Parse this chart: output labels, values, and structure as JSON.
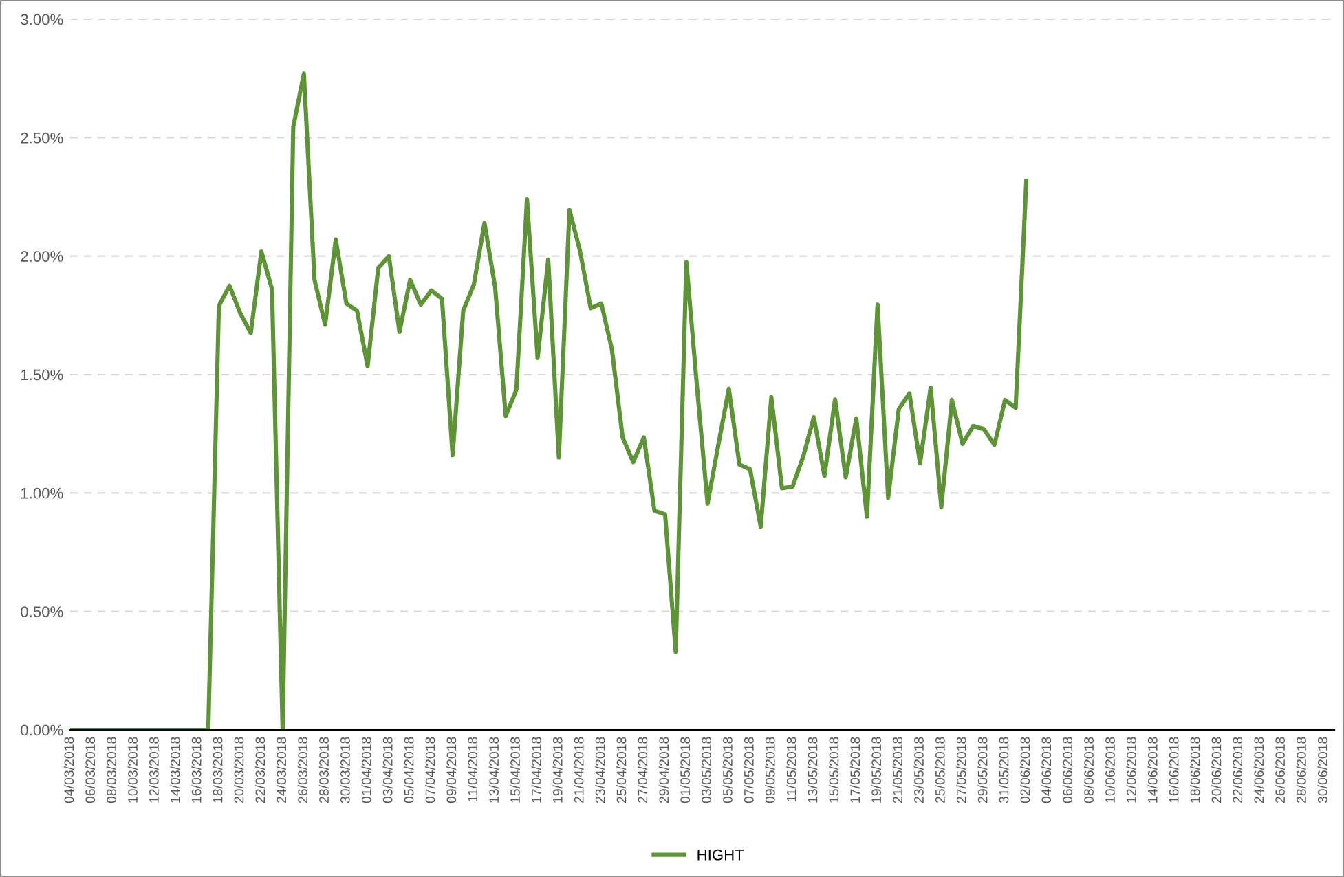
{
  "chart_data": {
    "type": "line",
    "x": [
      "2018-03-04",
      "2018-03-05",
      "2018-03-06",
      "2018-03-07",
      "2018-03-08",
      "2018-03-09",
      "2018-03-10",
      "2018-03-11",
      "2018-03-12",
      "2018-03-13",
      "2018-03-14",
      "2018-03-15",
      "2018-03-16",
      "2018-03-17",
      "2018-03-18",
      "2018-03-19",
      "2018-03-20",
      "2018-03-21",
      "2018-03-22",
      "2018-03-23",
      "2018-03-24",
      "2018-03-25",
      "2018-03-26",
      "2018-03-27",
      "2018-03-28",
      "2018-03-29",
      "2018-03-30",
      "2018-03-31",
      "2018-04-01",
      "2018-04-02",
      "2018-04-03",
      "2018-04-04",
      "2018-04-05",
      "2018-04-06",
      "2018-04-07",
      "2018-04-08",
      "2018-04-09",
      "2018-04-10",
      "2018-04-11",
      "2018-04-12",
      "2018-04-13",
      "2018-04-14",
      "2018-04-15",
      "2018-04-16",
      "2018-04-17",
      "2018-04-18",
      "2018-04-19",
      "2018-04-20",
      "2018-04-21",
      "2018-04-22",
      "2018-04-23",
      "2018-04-24",
      "2018-04-25",
      "2018-04-26",
      "2018-04-27",
      "2018-04-28",
      "2018-04-29",
      "2018-04-30",
      "2018-05-01",
      "2018-05-02",
      "2018-05-03",
      "2018-05-04",
      "2018-05-05",
      "2018-05-06",
      "2018-05-07",
      "2018-05-08",
      "2018-05-09",
      "2018-05-10",
      "2018-05-11",
      "2018-05-12",
      "2018-05-13",
      "2018-05-14",
      "2018-05-15",
      "2018-05-16",
      "2018-05-17",
      "2018-05-18",
      "2018-05-19",
      "2018-05-20",
      "2018-05-21",
      "2018-05-22",
      "2018-05-23",
      "2018-05-24",
      "2018-05-25",
      "2018-05-26",
      "2018-05-27",
      "2018-05-28",
      "2018-05-29",
      "2018-05-30",
      "2018-05-31",
      "2018-06-01",
      "2018-06-02"
    ],
    "series": [
      {
        "name": "HIGHT",
        "color": "#5e9338",
        "values": [
          0,
          0,
          0,
          0,
          0,
          0,
          0,
          0,
          0,
          0,
          0,
          0,
          0,
          0,
          1.79,
          1.875,
          1.76,
          1.675,
          2.02,
          1.86,
          0,
          2.545,
          2.77,
          1.9,
          1.71,
          2.07,
          1.8,
          1.77,
          1.535,
          1.95,
          2.0,
          1.68,
          1.9,
          1.795,
          1.855,
          1.82,
          1.16,
          1.77,
          1.88,
          2.14,
          1.87,
          1.325,
          1.435,
          2.24,
          1.57,
          1.985,
          1.15,
          2.195,
          2.02,
          1.78,
          1.8,
          1.605,
          1.235,
          1.13,
          1.235,
          0.925,
          0.91,
          0.33,
          1.975,
          1.45,
          0.955,
          1.2,
          1.44,
          1.12,
          1.1,
          0.857,
          1.405,
          1.02,
          1.027,
          1.153,
          1.32,
          1.072,
          1.395,
          1.066,
          1.315,
          0.9,
          1.795,
          0.98,
          1.355,
          1.42,
          1.125,
          1.445,
          0.94,
          1.393,
          1.207,
          1.283,
          1.27,
          1.203,
          1.393,
          1.36,
          2.317
        ]
      }
    ],
    "xlim": [
      "2018-03-04",
      "2018-07-01"
    ],
    "xticks": [
      {
        "value": "2018-03-04",
        "label": "04/03/2018"
      },
      {
        "value": "2018-03-06",
        "label": "06/03/2018"
      },
      {
        "value": "2018-03-08",
        "label": "08/03/2018"
      },
      {
        "value": "2018-03-10",
        "label": "10/03/2018"
      },
      {
        "value": "2018-03-12",
        "label": "12/03/2018"
      },
      {
        "value": "2018-03-14",
        "label": "14/03/2018"
      },
      {
        "value": "2018-03-16",
        "label": "16/03/2018"
      },
      {
        "value": "2018-03-18",
        "label": "18/03/2018"
      },
      {
        "value": "2018-03-20",
        "label": "20/03/2018"
      },
      {
        "value": "2018-03-22",
        "label": "22/03/2018"
      },
      {
        "value": "2018-03-24",
        "label": "24/03/2018"
      },
      {
        "value": "2018-03-26",
        "label": "26/03/2018"
      },
      {
        "value": "2018-03-28",
        "label": "28/03/2018"
      },
      {
        "value": "2018-03-30",
        "label": "30/03/2018"
      },
      {
        "value": "2018-04-01",
        "label": "01/04/2018"
      },
      {
        "value": "2018-04-03",
        "label": "03/04/2018"
      },
      {
        "value": "2018-04-05",
        "label": "05/04/2018"
      },
      {
        "value": "2018-04-07",
        "label": "07/04/2018"
      },
      {
        "value": "2018-04-09",
        "label": "09/04/2018"
      },
      {
        "value": "2018-04-11",
        "label": "11/04/2018"
      },
      {
        "value": "2018-04-13",
        "label": "13/04/2018"
      },
      {
        "value": "2018-04-15",
        "label": "15/04/2018"
      },
      {
        "value": "2018-04-17",
        "label": "17/04/2018"
      },
      {
        "value": "2018-04-19",
        "label": "19/04/2018"
      },
      {
        "value": "2018-04-21",
        "label": "21/04/2018"
      },
      {
        "value": "2018-04-23",
        "label": "23/04/2018"
      },
      {
        "value": "2018-04-25",
        "label": "25/04/2018"
      },
      {
        "value": "2018-04-27",
        "label": "27/04/2018"
      },
      {
        "value": "2018-04-29",
        "label": "29/04/2018"
      },
      {
        "value": "2018-05-01",
        "label": "01/05/2018"
      },
      {
        "value": "2018-05-03",
        "label": "03/05/2018"
      },
      {
        "value": "2018-05-05",
        "label": "05/05/2018"
      },
      {
        "value": "2018-05-07",
        "label": "07/05/2018"
      },
      {
        "value": "2018-05-09",
        "label": "09/05/2018"
      },
      {
        "value": "2018-05-11",
        "label": "11/05/2018"
      },
      {
        "value": "2018-05-13",
        "label": "13/05/2018"
      },
      {
        "value": "2018-05-15",
        "label": "15/05/2018"
      },
      {
        "value": "2018-05-17",
        "label": "17/05/2018"
      },
      {
        "value": "2018-05-19",
        "label": "19/05/2018"
      },
      {
        "value": "2018-05-21",
        "label": "21/05/2018"
      },
      {
        "value": "2018-05-23",
        "label": "23/05/2018"
      },
      {
        "value": "2018-05-25",
        "label": "25/05/2018"
      },
      {
        "value": "2018-05-27",
        "label": "27/05/2018"
      },
      {
        "value": "2018-05-29",
        "label": "29/05/2018"
      },
      {
        "value": "2018-05-31",
        "label": "31/05/2018"
      },
      {
        "value": "2018-06-02",
        "label": "02/06/2018"
      },
      {
        "value": "2018-06-04",
        "label": "04/06/2018"
      },
      {
        "value": "2018-06-06",
        "label": "06/06/2018"
      },
      {
        "value": "2018-06-08",
        "label": "08/06/2018"
      },
      {
        "value": "2018-06-10",
        "label": "10/06/2018"
      },
      {
        "value": "2018-06-12",
        "label": "12/06/2018"
      },
      {
        "value": "2018-06-14",
        "label": "14/06/2018"
      },
      {
        "value": "2018-06-16",
        "label": "16/06/2018"
      },
      {
        "value": "2018-06-18",
        "label": "18/06/2018"
      },
      {
        "value": "2018-06-20",
        "label": "20/06/2018"
      },
      {
        "value": "2018-06-22",
        "label": "22/06/2018"
      },
      {
        "value": "2018-06-24",
        "label": "24/06/2018"
      },
      {
        "value": "2018-06-26",
        "label": "26/06/2018"
      },
      {
        "value": "2018-06-28",
        "label": "28/06/2018"
      },
      {
        "value": "2018-06-30",
        "label": "30/06/2018"
      }
    ],
    "ylim": [
      0,
      3
    ],
    "yticks": [
      {
        "value": 0,
        "label": "0.00%"
      },
      {
        "value": 0.5,
        "label": "0.50%"
      },
      {
        "value": 1,
        "label": "1.00%"
      },
      {
        "value": 1.5,
        "label": "1.50%"
      },
      {
        "value": 2,
        "label": "2.00%"
      },
      {
        "value": 2.5,
        "label": "2.50%"
      },
      {
        "value": 3,
        "label": "3.00%"
      }
    ],
    "grid": "y",
    "legend": "bottom",
    "marker": "none",
    "line_style": "solid"
  }
}
